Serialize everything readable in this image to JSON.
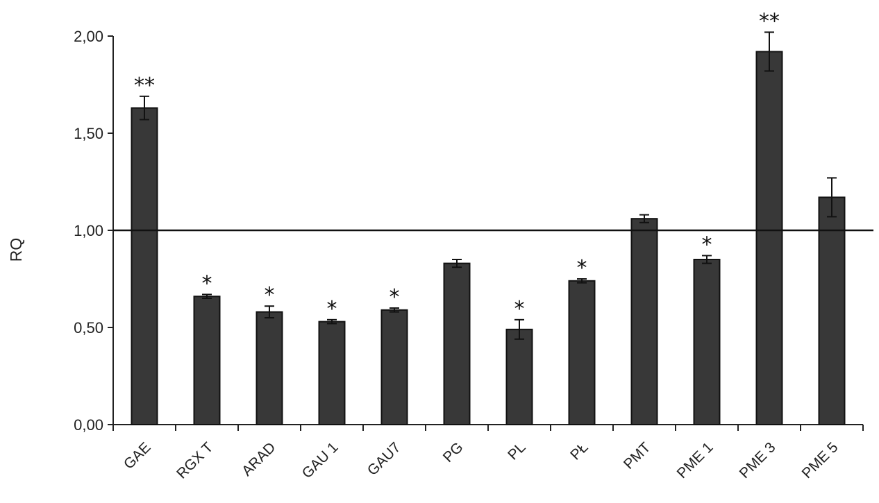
{
  "chart_data": {
    "type": "bar",
    "title": "",
    "xlabel": "",
    "ylabel": "RQ",
    "ylim": [
      0,
      2.0
    ],
    "yticks": [
      "0,00",
      "0,50",
      "1,00",
      "1,50",
      "2,00"
    ],
    "reference_line": 1.0,
    "grid": false,
    "legend": "none",
    "bar_color": "#383838",
    "categories": [
      "GAE",
      "RGX T",
      "ARAD",
      "GAU 1",
      "GAU7",
      "PG",
      "PL",
      "PŁ",
      "PMT",
      "PME 1",
      "PME 3",
      "PME 5"
    ],
    "values": [
      1.63,
      0.66,
      0.58,
      0.53,
      0.59,
      0.83,
      0.49,
      0.74,
      1.06,
      0.85,
      1.92,
      1.17
    ],
    "errors": [
      0.06,
      0.01,
      0.03,
      0.01,
      0.01,
      0.02,
      0.05,
      0.01,
      0.02,
      0.02,
      0.1,
      0.1
    ],
    "significance": [
      "**",
      "*",
      "*",
      "*",
      "*",
      "",
      "*",
      "*",
      "",
      "*",
      "**",
      ""
    ]
  }
}
